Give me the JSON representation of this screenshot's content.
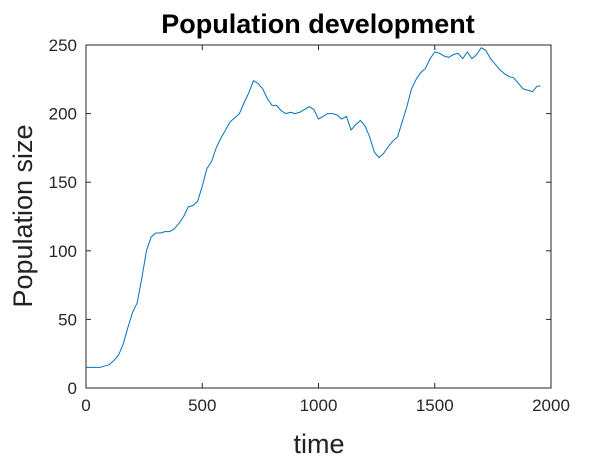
{
  "chart_data": {
    "type": "line",
    "title": "Population development",
    "xlabel": "time",
    "ylabel": "Population size",
    "xlim": [
      0,
      2000
    ],
    "ylim": [
      0,
      250
    ],
    "xticks": [
      0,
      500,
      1000,
      1500,
      2000
    ],
    "yticks": [
      0,
      50,
      100,
      150,
      200,
      250
    ],
    "xtick_labels": [
      "0",
      "500",
      "1000",
      "1500",
      "2000"
    ],
    "ytick_labels": [
      "0",
      "50",
      "100",
      "150",
      "200",
      "250"
    ],
    "grid": false,
    "series": [
      {
        "color": "#0072bd",
        "x": [
          0,
          20,
          40,
          60,
          80,
          100,
          120,
          140,
          160,
          180,
          200,
          220,
          240,
          260,
          280,
          300,
          320,
          340,
          360,
          380,
          400,
          420,
          440,
          460,
          480,
          500,
          520,
          540,
          560,
          580,
          600,
          620,
          640,
          660,
          680,
          700,
          720,
          740,
          760,
          780,
          800,
          820,
          840,
          860,
          880,
          900,
          920,
          940,
          960,
          980,
          1000,
          1020,
          1040,
          1060,
          1080,
          1100,
          1120,
          1140,
          1160,
          1180,
          1200,
          1220,
          1240,
          1260,
          1280,
          1300,
          1320,
          1340,
          1360,
          1380,
          1400,
          1420,
          1440,
          1460,
          1480,
          1500,
          1520,
          1540,
          1560,
          1580,
          1600,
          1620,
          1640,
          1660,
          1680,
          1700,
          1720,
          1740,
          1760,
          1780,
          1800,
          1820,
          1840,
          1860,
          1880,
          1900,
          1920,
          1940,
          1955
        ],
        "y": [
          15,
          15,
          15,
          15,
          16,
          17,
          20,
          24,
          32,
          44,
          55,
          62,
          80,
          100,
          110,
          113,
          113,
          114,
          114,
          116,
          120,
          125,
          132,
          133,
          136,
          147,
          160,
          165,
          175,
          182,
          188,
          194,
          197,
          200,
          208,
          215,
          224,
          222,
          218,
          211,
          206,
          206,
          202,
          200,
          201,
          200,
          201,
          203,
          205,
          203,
          196,
          198,
          200,
          200,
          199,
          196,
          198,
          188,
          192,
          195,
          191,
          183,
          172,
          168,
          171,
          176,
          180,
          183,
          194,
          205,
          218,
          225,
          230,
          233,
          240,
          245,
          244,
          242,
          241,
          243,
          244,
          240,
          245,
          240,
          243,
          248,
          246,
          240,
          236,
          232,
          229,
          227,
          226,
          222,
          218,
          217,
          216,
          220,
          220
        ]
      }
    ]
  }
}
